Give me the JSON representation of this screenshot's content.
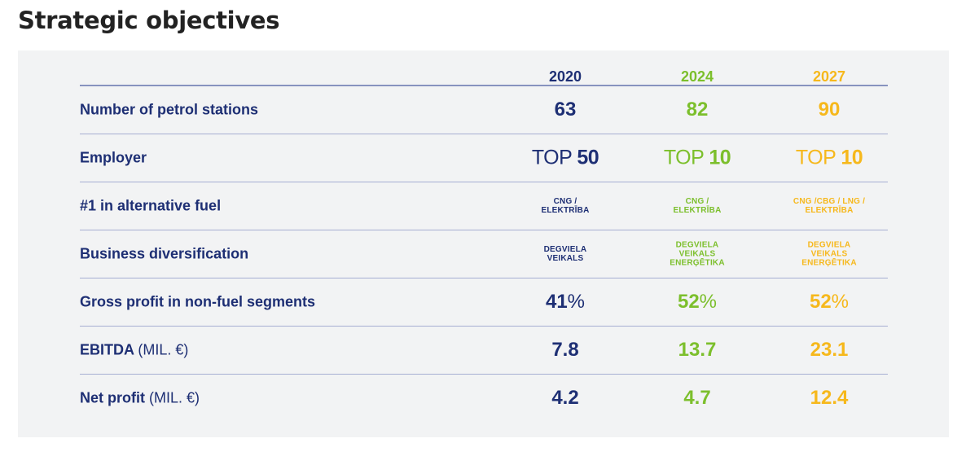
{
  "title": "Strategic objectives",
  "years": [
    "2020",
    "2024",
    "2027"
  ],
  "rows": {
    "stations": {
      "label": "Number of petrol stations",
      "values": [
        "63",
        "82",
        "90"
      ]
    },
    "employer": {
      "label": "Employer",
      "prefix": "TOP",
      "values": [
        "50",
        "10",
        "10"
      ]
    },
    "alt_fuel": {
      "label": "#1 in alternative fuel",
      "values": [
        [
          "CNG /",
          "ELEKTRĪBA"
        ],
        [
          "CNG /",
          "ELEKTRĪBA"
        ],
        [
          "CNG /CBG / LNG /",
          "ELEKTRĪBA"
        ]
      ]
    },
    "diversification": {
      "label": "Business diversification",
      "values": [
        [
          "DEGVIELA",
          "VEIKALS"
        ],
        [
          "DEGVIELA",
          "VEIKALS",
          "ENERĢĒTIKA"
        ],
        [
          "DEGVIELA",
          "VEIKALS",
          "ENERĢĒTIKA"
        ]
      ]
    },
    "gross_profit": {
      "label": "Gross profit in non-fuel segments",
      "values": [
        "41",
        "52",
        "52"
      ],
      "suffix": "%"
    },
    "ebitda": {
      "label": "EBITDA",
      "unit": "(MIL. €)",
      "values": [
        "7.8",
        "13.7",
        "23.1"
      ]
    },
    "net_profit": {
      "label": "Net profit",
      "unit": "(MIL. €)",
      "values": [
        "4.2",
        "4.7",
        "12.4"
      ]
    }
  },
  "colors": {
    "col_2020": "#1e2f74",
    "col_2024": "#7cbf2c",
    "col_2027": "#f6b81c",
    "panel_bg": "#f2f3f4"
  }
}
